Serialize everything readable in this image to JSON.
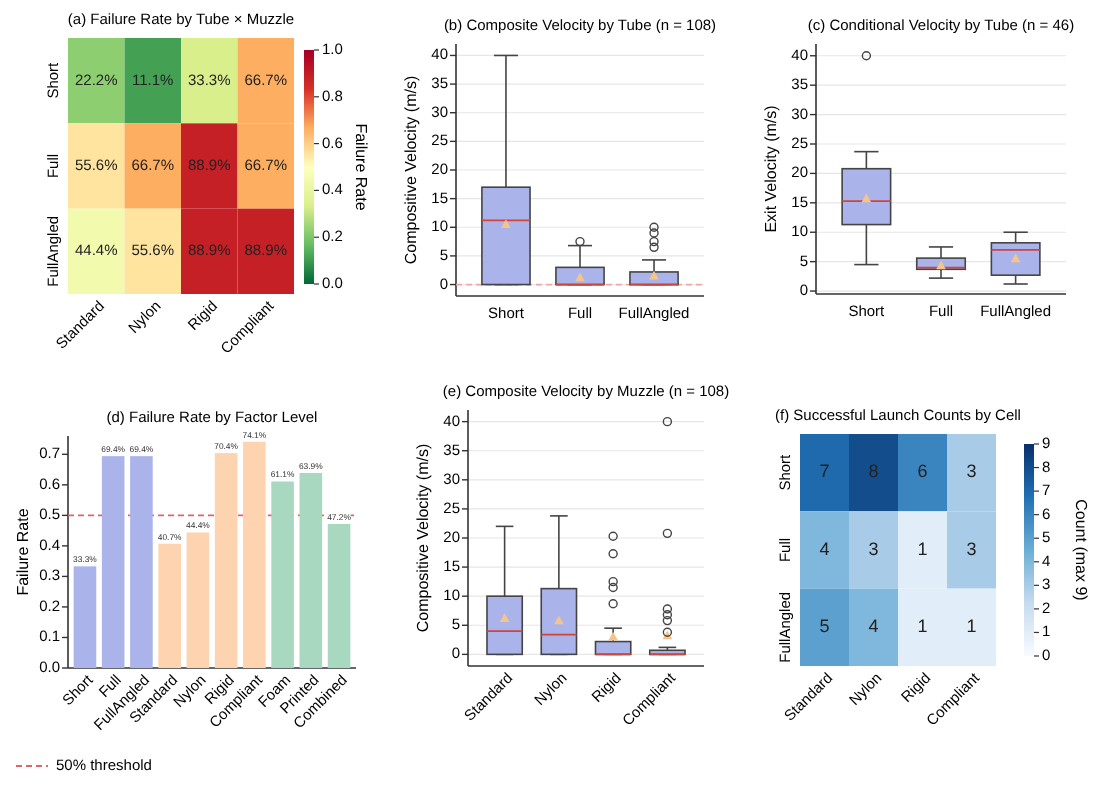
{
  "chart_data": [
    {
      "type": "heatmap",
      "title": "(a) Failure Rate by Tube × Muzzle",
      "categories": [
        "Standard",
        "Nylon",
        "Rigid",
        "Compliant"
      ],
      "y_categories": [
        "Short",
        "Full",
        "FullAngled"
      ],
      "cells": [
        [
          0.222,
          0.111,
          0.333,
          0.667
        ],
        [
          0.556,
          0.667,
          0.889,
          0.667
        ],
        [
          0.444,
          0.556,
          0.889,
          0.889
        ]
      ],
      "cell_labels": [
        [
          "22.2%",
          "11.1%",
          "33.3%",
          "66.7%"
        ],
        [
          "55.6%",
          "66.7%",
          "88.9%",
          "66.7%"
        ],
        [
          "44.4%",
          "55.6%",
          "88.9%",
          "88.9%"
        ]
      ],
      "clim": [
        0,
        1
      ],
      "cticks": [
        {
          "value": 0,
          "label": "0.0"
        },
        {
          "value": 0.2,
          "label": "0.2"
        },
        {
          "value": 0.4,
          "label": "0.4"
        },
        {
          "value": 0.6,
          "label": "0.6"
        },
        {
          "value": 0.8,
          "label": "0.8"
        },
        {
          "value": 1,
          "label": "1.0"
        }
      ],
      "clabel": "Failure Rate",
      "colors": [
        "#006837",
        "#66bd63",
        "#d9ef8b",
        "#ffffbf",
        "#fdae61",
        "#d73027",
        "#a50026"
      ]
    },
    {
      "type": "box",
      "title": "(b) Composite Velocity by Tube (n = 108)",
      "ylabel": "Compositive Velocity (m/s)",
      "categories": [
        "Short",
        "Full",
        "FullAngled"
      ],
      "color": "#aab4ea",
      "marker": "triangle",
      "boxes": [
        {
          "low": 0,
          "q1": 0,
          "median": 11.2,
          "q3": 17,
          "high": 40,
          "mean": 10.5
        },
        {
          "low": 0,
          "q1": 0,
          "median": 0,
          "q3": 3,
          "high": 6.8,
          "mean": 1.2,
          "outliers": [
            7.5
          ]
        },
        {
          "low": 0,
          "q1": 0,
          "median": 0,
          "q3": 2.2,
          "high": 4.3,
          "mean": 1.5,
          "outliers": [
            6.5,
            7.5,
            9,
            10
          ]
        }
      ],
      "ylim": [
        -2,
        42
      ],
      "yticks": [
        0,
        5,
        10,
        15,
        20,
        25,
        30,
        35,
        40
      ],
      "grid": "y",
      "ref_lines": [
        {
          "axis": "y",
          "value": 0,
          "color": "#f4a6a6",
          "line_style": "dashed"
        }
      ]
    },
    {
      "type": "box",
      "title": "(c) Conditional Velocity by Tube (n = 46)",
      "ylabel": "Exit Velocity (m/s)",
      "categories": [
        "Short",
        "Full",
        "FullAngled"
      ],
      "color": "#aab4ea",
      "marker": "triangle",
      "boxes": [
        {
          "low": 4.5,
          "q1": 11.3,
          "median": 15.3,
          "q3": 20.8,
          "high": 23.7,
          "mean": 15.7,
          "outliers": [
            40
          ]
        },
        {
          "low": 2.2,
          "q1": 3.7,
          "median": 4,
          "q3": 5.6,
          "high": 7.5,
          "mean": 4.3
        },
        {
          "low": 1.2,
          "q1": 2.7,
          "median": 7,
          "q3": 8.2,
          "high": 10,
          "mean": 5.5
        }
      ],
      "ylim": [
        -0.5,
        42
      ],
      "yticks": [
        0,
        5,
        10,
        15,
        20,
        25,
        30,
        35,
        40
      ],
      "grid": "y"
    },
    {
      "type": "bar",
      "title": "(d) Failure Rate by Factor Level",
      "ylabel": "Failure Rate",
      "categories": [
        "Short",
        "Full",
        "FullAngled",
        "Standard",
        "Nylon",
        "Rigid",
        "Compliant",
        "Foam",
        "Printed",
        "Combined"
      ],
      "values": [
        0.333,
        0.694,
        0.694,
        0.407,
        0.444,
        0.704,
        0.741,
        0.611,
        0.639,
        0.472
      ],
      "value_labels": [
        "33.3%",
        "69.4%",
        "69.4%",
        "40.7%",
        "44.4%",
        "70.4%",
        "74.1%",
        "61.1%",
        "63.9%",
        "47.2%"
      ],
      "colors": [
        "#aab4ea",
        "#aab4ea",
        "#aab4ea",
        "#fdd3b0",
        "#fdd3b0",
        "#fdd3b0",
        "#fdd3b0",
        "#a8d8bf",
        "#a8d8bf",
        "#a8d8bf"
      ],
      "ylim": [
        0,
        0.76
      ],
      "yticks": [
        {
          "value": 0,
          "label": "0.0"
        },
        {
          "value": 0.1,
          "label": "0.1"
        },
        {
          "value": 0.2,
          "label": "0.2"
        },
        {
          "value": 0.3,
          "label": "0.3"
        },
        {
          "value": 0.4,
          "label": "0.4"
        },
        {
          "value": 0.5,
          "label": "0.5"
        },
        {
          "value": 0.6,
          "label": "0.6"
        },
        {
          "value": 0.7,
          "label": "0.7"
        }
      ],
      "ref_lines": [
        {
          "axis": "y",
          "value": 0.5,
          "label": "50% threshold",
          "color": "#e06666",
          "line_style": "dashed"
        }
      ],
      "legend": "bottom"
    },
    {
      "type": "box",
      "title": "(e) Composite Velocity by Muzzle (n = 108)",
      "ylabel": "Compositive Velocity (m/s)",
      "categories": [
        "Standard",
        "Nylon",
        "Rigid",
        "Compliant"
      ],
      "color": "#aab4ea",
      "marker": "triangle",
      "boxes": [
        {
          "low": 0,
          "q1": 0,
          "median": 4,
          "q3": 10,
          "high": 22,
          "mean": 6.2
        },
        {
          "low": 0,
          "q1": 0,
          "median": 3.4,
          "q3": 11.3,
          "high": 23.8,
          "mean": 5.8
        },
        {
          "low": 0,
          "q1": 0,
          "median": 0,
          "q3": 2.2,
          "high": 4.5,
          "mean": 3,
          "outliers": [
            8.7,
            11.5,
            12.5,
            17.3,
            20.3
          ]
        },
        {
          "low": 0,
          "q1": 0,
          "median": 0,
          "q3": 0.7,
          "high": 1.2,
          "mean": 3.2,
          "outliers": [
            3.8,
            5.8,
            6.8,
            7.8,
            20.8,
            40
          ]
        }
      ],
      "ylim": [
        -2,
        42
      ],
      "yticks": [
        0,
        5,
        10,
        15,
        20,
        25,
        30,
        35,
        40
      ],
      "grid": "y"
    },
    {
      "type": "heatmap",
      "title": "(f) Successful Launch Counts by Cell",
      "categories": [
        "Standard",
        "Nylon",
        "Rigid",
        "Compliant"
      ],
      "y_categories": [
        "Short",
        "Full",
        "FullAngled"
      ],
      "cells": [
        [
          7,
          8,
          6,
          3
        ],
        [
          4,
          3,
          1,
          3
        ],
        [
          5,
          4,
          1,
          1
        ]
      ],
      "data_labels": true,
      "clim": [
        0,
        9
      ],
      "cticks": [
        0,
        1,
        2,
        3,
        4,
        5,
        6,
        7,
        8,
        9
      ],
      "clabel": "Count (max 9)",
      "colors": [
        "#f7fbff",
        "#c6dbef",
        "#6baed6",
        "#2171b5",
        "#08306b"
      ]
    }
  ]
}
